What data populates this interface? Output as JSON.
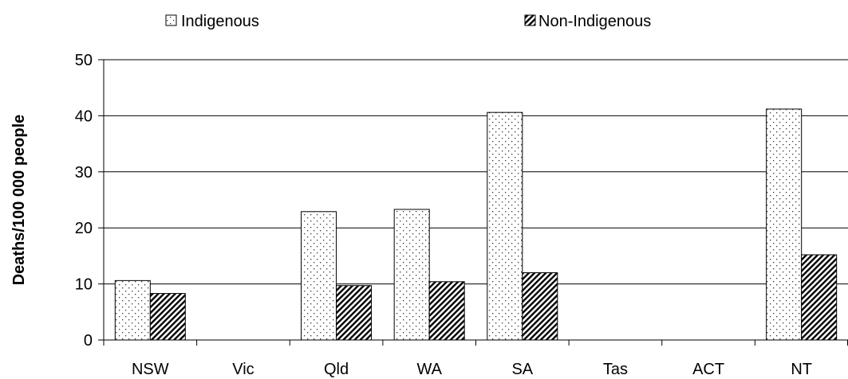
{
  "chart_data": {
    "type": "bar",
    "title": "",
    "xlabel": "",
    "ylabel": "Deaths/100 000 people",
    "ylim": [
      0,
      50
    ],
    "yticks": [
      0,
      10,
      20,
      30,
      40,
      50
    ],
    "grid": true,
    "legend_position": "top",
    "categories": [
      "NSW",
      "Vic",
      "Qld",
      "WA",
      "SA",
      "Tas",
      "ACT",
      "NT"
    ],
    "series": [
      {
        "name": "Indigenous",
        "pattern": "dots",
        "values": [
          10.6,
          null,
          22.9,
          23.3,
          40.6,
          null,
          null,
          41.2
        ]
      },
      {
        "name": "Non-Indigenous",
        "pattern": "diagonal-hatch",
        "values": [
          8.3,
          null,
          9.7,
          10.4,
          12.0,
          null,
          null,
          15.2
        ]
      }
    ]
  }
}
